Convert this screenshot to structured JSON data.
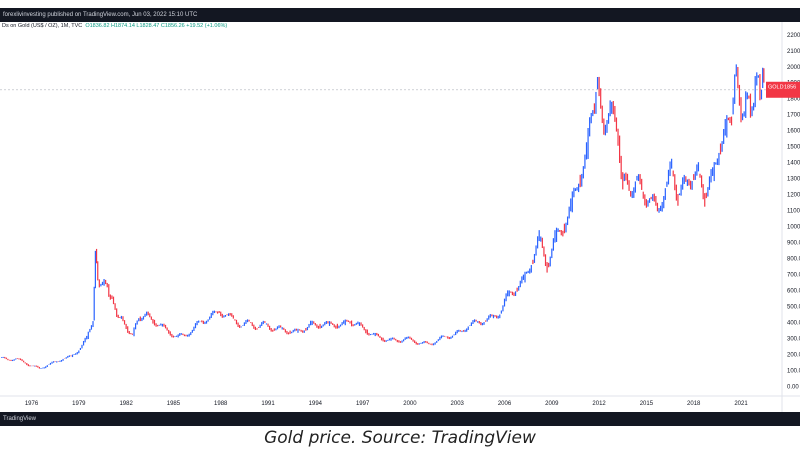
{
  "header": {
    "publisher_line": "forexlivinvesting published on TradingView.com, Jun 03, 2022 15:10 UTC",
    "symbol_line": "Ds on Gold (US$ / OZ), 1M, TVC",
    "ohlc": "O1836.82 H1874.14 L1828.47 C1856.26 +19.52 (+1.06%)"
  },
  "footer": {
    "brand": "TradingView"
  },
  "caption": "Gold price. Source: TradingView",
  "price_badge": {
    "label": "GOLD",
    "value": "1856",
    "sub": "...",
    "color": "#f23645"
  },
  "colors": {
    "up": "#2962ff",
    "down": "#f23645",
    "bar": "#131722"
  },
  "chart_data": {
    "type": "line",
    "title": "Gold (US$ / OZ)",
    "xlabel": "",
    "ylabel": "",
    "x_ticks": [
      "1976",
      "1979",
      "1982",
      "1985",
      "1988",
      "1991",
      "1994",
      "1997",
      "2000",
      "2003",
      "2006",
      "2009",
      "2012",
      "2015",
      "2018",
      "2021"
    ],
    "y_ticks": [
      0,
      100,
      200,
      300,
      400,
      500,
      600,
      700,
      800,
      900,
      1000,
      1100,
      1200,
      1300,
      1400,
      1500,
      1600,
      1700,
      1800,
      1900,
      2000,
      2100,
      2200
    ],
    "y_tick_labels": [
      "0.00",
      "100.00",
      "200.00",
      "300.00",
      "400.00",
      "500.00",
      "600.00",
      "700.00",
      "800.00",
      "900.00",
      "1000.00",
      "1100.00",
      "1200.00",
      "1300.00",
      "1400.00",
      "1500.00",
      "1600.00",
      "1700.00",
      "1800.00",
      "1900.00",
      "2000.00",
      "2100.00",
      "2200.00"
    ],
    "xlim": [
      1974.0,
      2023.6
    ],
    "ylim": [
      -60,
      2280
    ],
    "current_price": 1856,
    "series": [
      {
        "values": [
          [
            1974.0,
            180
          ],
          [
            1974.5,
            165
          ],
          [
            1975.0,
            175
          ],
          [
            1975.5,
            150
          ],
          [
            1976.0,
            130
          ],
          [
            1976.5,
            110
          ],
          [
            1977.0,
            135
          ],
          [
            1977.5,
            150
          ],
          [
            1978.0,
            175
          ],
          [
            1978.5,
            185
          ],
          [
            1979.0,
            230
          ],
          [
            1979.5,
            300
          ],
          [
            1979.9,
            420
          ],
          [
            1980.05,
            850
          ],
          [
            1980.2,
            660
          ],
          [
            1980.5,
            640
          ],
          [
            1980.8,
            630
          ],
          [
            1981.0,
            560
          ],
          [
            1981.3,
            480
          ],
          [
            1981.6,
            430
          ],
          [
            1982.0,
            370
          ],
          [
            1982.4,
            320
          ],
          [
            1982.8,
            430
          ],
          [
            1983.2,
            450
          ],
          [
            1983.7,
            410
          ],
          [
            1984.2,
            380
          ],
          [
            1984.7,
            340
          ],
          [
            1985.2,
            310
          ],
          [
            1985.7,
            320
          ],
          [
            1986.2,
            350
          ],
          [
            1986.7,
            410
          ],
          [
            1987.2,
            420
          ],
          [
            1987.8,
            470
          ],
          [
            1988.3,
            450
          ],
          [
            1988.8,
            420
          ],
          [
            1989.3,
            380
          ],
          [
            1989.8,
            400
          ],
          [
            1990.3,
            370
          ],
          [
            1990.8,
            390
          ],
          [
            1991.3,
            360
          ],
          [
            1991.8,
            360
          ],
          [
            1992.3,
            345
          ],
          [
            1992.8,
            340
          ],
          [
            1993.3,
            360
          ],
          [
            1993.7,
            390
          ],
          [
            1994.2,
            385
          ],
          [
            1994.8,
            385
          ],
          [
            1995.3,
            385
          ],
          [
            1995.8,
            390
          ],
          [
            1996.2,
            405
          ],
          [
            1996.7,
            385
          ],
          [
            1997.2,
            350
          ],
          [
            1997.7,
            320
          ],
          [
            1998.2,
            300
          ],
          [
            1998.7,
            290
          ],
          [
            1999.2,
            285
          ],
          [
            1999.7,
            300
          ],
          [
            2000.2,
            285
          ],
          [
            2000.7,
            270
          ],
          [
            2001.2,
            265
          ],
          [
            2001.7,
            285
          ],
          [
            2002.2,
            310
          ],
          [
            2002.7,
            320
          ],
          [
            2003.2,
            340
          ],
          [
            2003.7,
            380
          ],
          [
            2004.2,
            400
          ],
          [
            2004.7,
            410
          ],
          [
            2005.2,
            430
          ],
          [
            2005.7,
            460
          ],
          [
            2006.2,
            570
          ],
          [
            2006.7,
            610
          ],
          [
            2007.2,
            660
          ],
          [
            2007.7,
            780
          ],
          [
            2008.2,
            920
          ],
          [
            2008.7,
            760
          ],
          [
            2009.2,
            920
          ],
          [
            2009.7,
            1000
          ],
          [
            2010.2,
            1110
          ],
          [
            2010.7,
            1300
          ],
          [
            2011.2,
            1450
          ],
          [
            2011.6,
            1740
          ],
          [
            2011.8,
            1890
          ],
          [
            2012.2,
            1650
          ],
          [
            2012.7,
            1730
          ],
          [
            2013.2,
            1550
          ],
          [
            2013.5,
            1300
          ],
          [
            2013.9,
            1210
          ],
          [
            2014.3,
            1300
          ],
          [
            2014.7,
            1210
          ],
          [
            2015.2,
            1180
          ],
          [
            2015.7,
            1090
          ],
          [
            2016.2,
            1250
          ],
          [
            2016.6,
            1350
          ],
          [
            2017.0,
            1200
          ],
          [
            2017.5,
            1260
          ],
          [
            2017.9,
            1320
          ],
          [
            2018.3,
            1320
          ],
          [
            2018.7,
            1200
          ],
          [
            2019.2,
            1300
          ],
          [
            2019.6,
            1500
          ],
          [
            2020.0,
            1580
          ],
          [
            2020.4,
            1730
          ],
          [
            2020.6,
            1970
          ],
          [
            2020.9,
            1780
          ],
          [
            2021.2,
            1710
          ],
          [
            2021.5,
            1800
          ],
          [
            2021.8,
            1780
          ],
          [
            2022.1,
            1920
          ],
          [
            2022.3,
            1900
          ],
          [
            2022.45,
            1856
          ]
        ]
      }
    ]
  }
}
